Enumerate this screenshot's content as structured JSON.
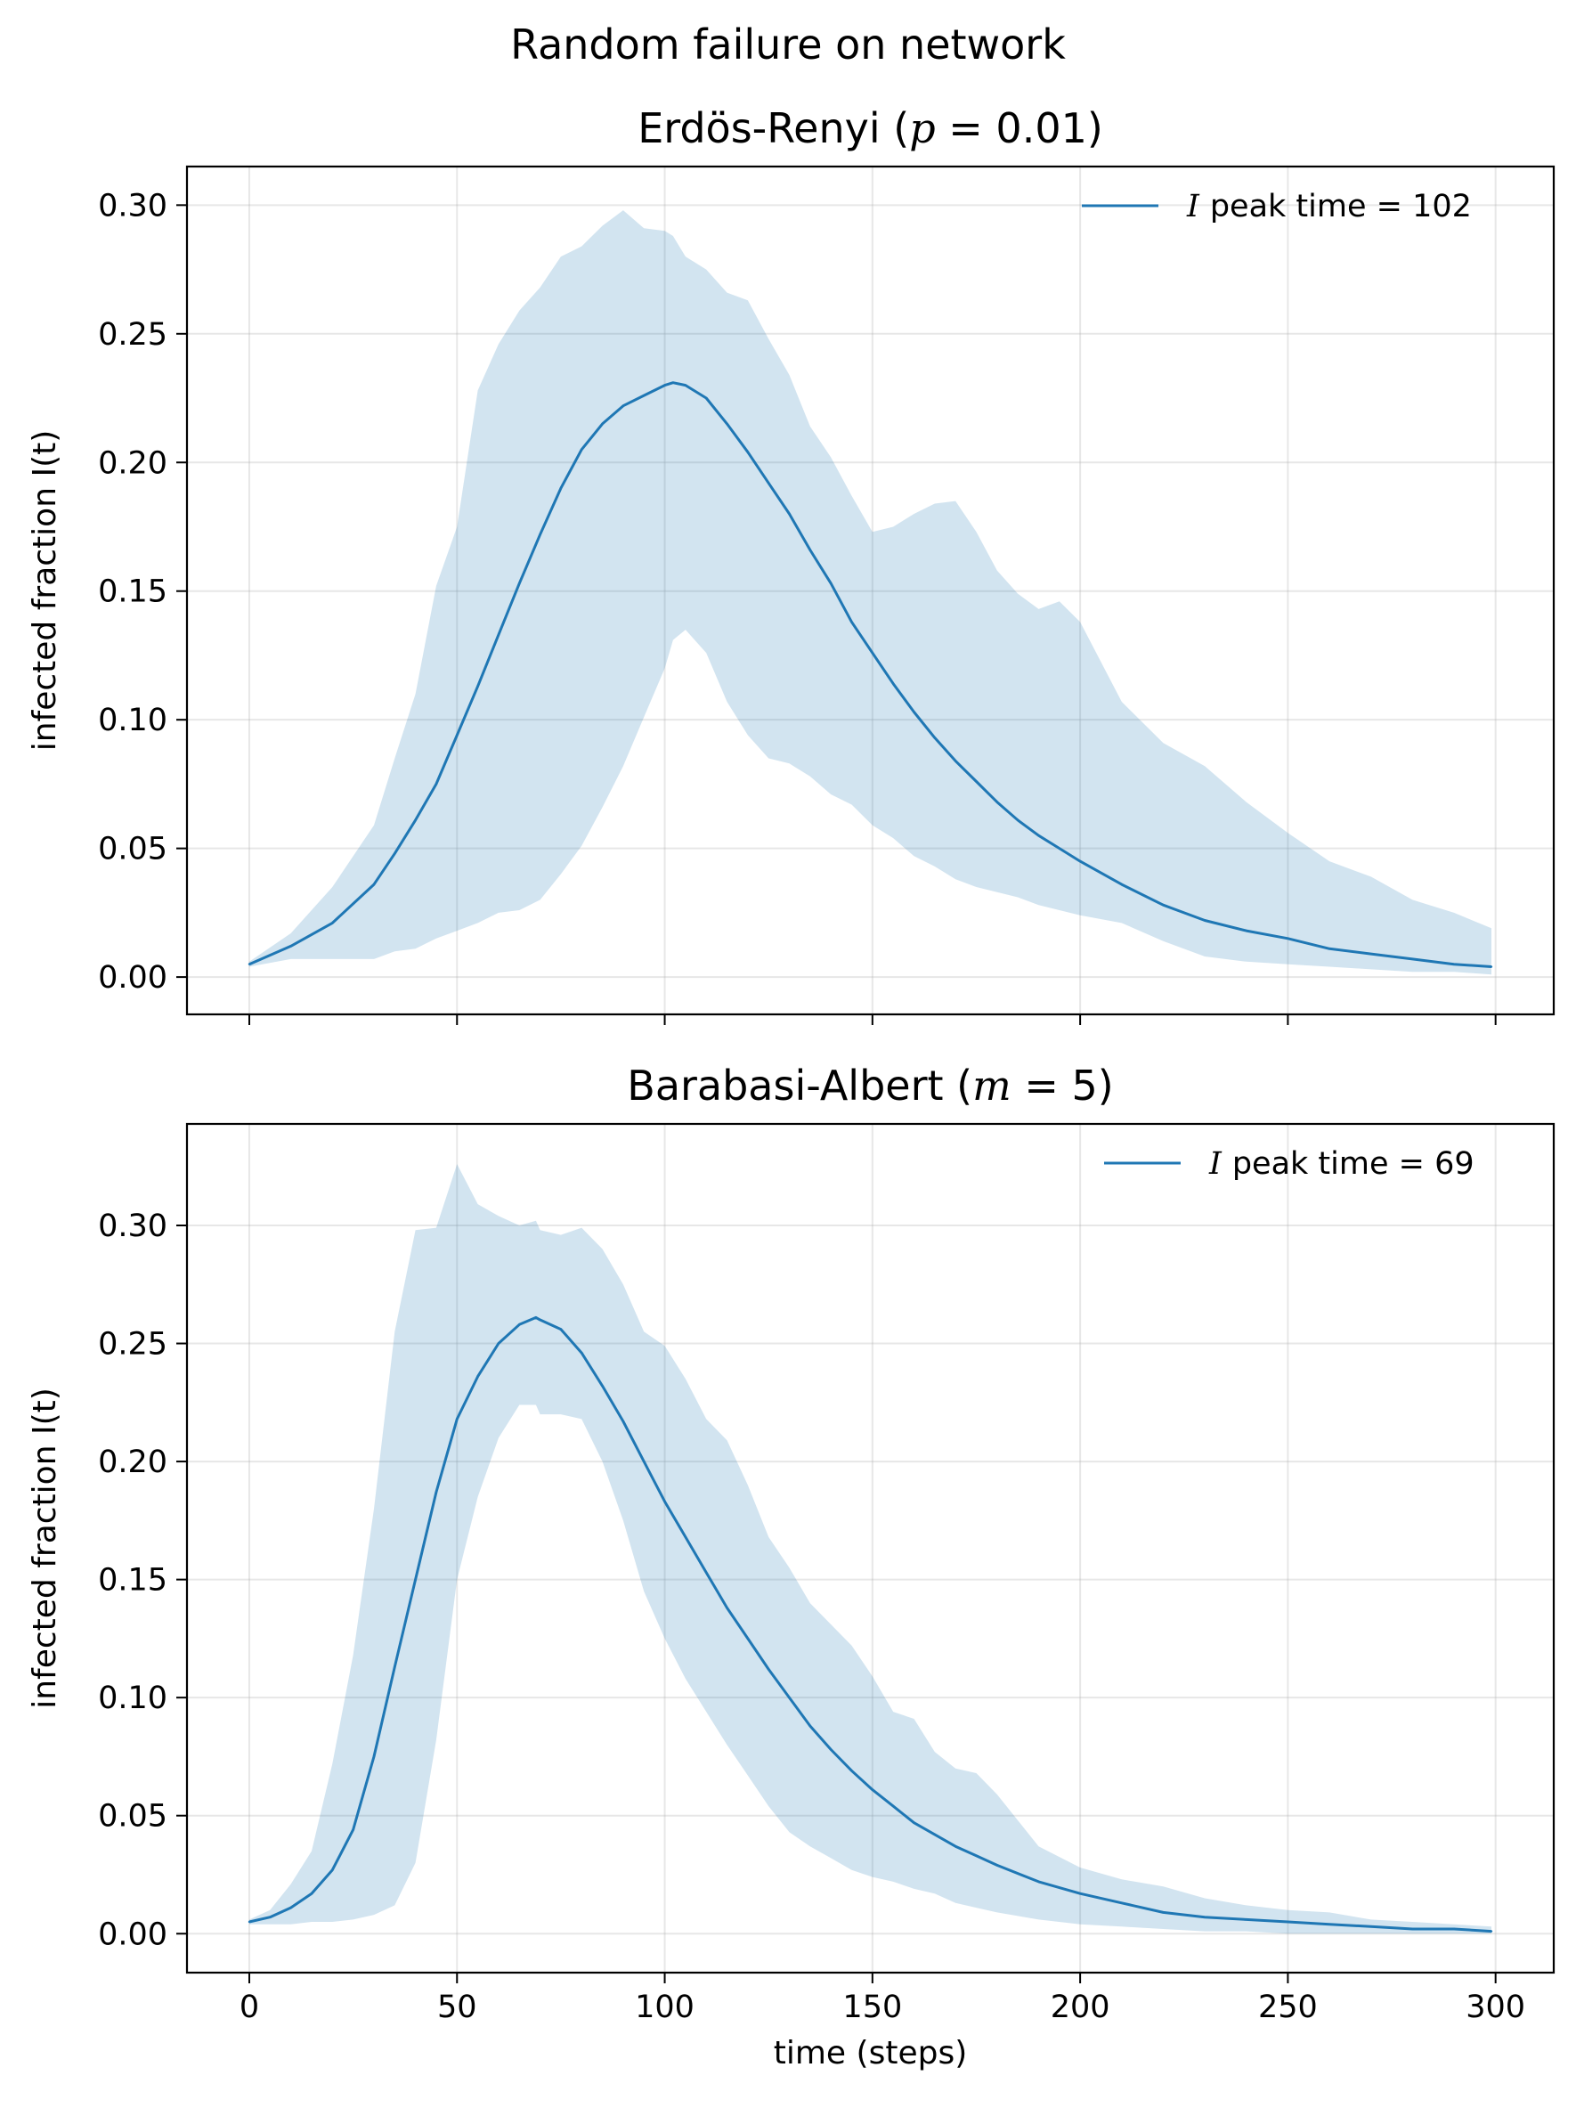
{
  "suptitle": "Random failure on network",
  "chart_data": [
    {
      "type": "line",
      "title_main": "Erdös-Renyi (",
      "title_var": "p",
      "title_eq": " = 0.01)",
      "xlabel": "",
      "ylabel": "infected fraction I(t)",
      "xlim": [
        -15,
        314
      ],
      "ylim": [
        -0.0145,
        0.315
      ],
      "xticks": [
        0,
        50,
        100,
        150,
        200,
        250,
        300
      ],
      "xtick_labels_visible": false,
      "yticks": [
        0.0,
        0.05,
        0.1,
        0.15,
        0.2,
        0.25,
        0.3
      ],
      "ytick_labels": [
        "0.00",
        "0.05",
        "0.10",
        "0.15",
        "0.20",
        "0.25",
        "0.30"
      ],
      "grid": true,
      "legend_position": "top-right",
      "series": [
        {
          "name": "I peak time = 102",
          "name_var": "I",
          "name_text": "peak time = 102",
          "color": "#1f77b4",
          "x": [
            0,
            10,
            20,
            30,
            35,
            40,
            45,
            50,
            55,
            60,
            65,
            70,
            75,
            80,
            85,
            90,
            95,
            100,
            102,
            105,
            110,
            115,
            120,
            125,
            130,
            135,
            140,
            145,
            150,
            155,
            160,
            165,
            170,
            175,
            180,
            185,
            190,
            195,
            200,
            210,
            220,
            230,
            240,
            250,
            260,
            270,
            280,
            290,
            299
          ],
          "mean": [
            0.005,
            0.012,
            0.021,
            0.036,
            0.048,
            0.061,
            0.075,
            0.094,
            0.113,
            0.133,
            0.153,
            0.172,
            0.19,
            0.205,
            0.215,
            0.222,
            0.226,
            0.23,
            0.231,
            0.23,
            0.225,
            0.215,
            0.204,
            0.192,
            0.18,
            0.166,
            0.153,
            0.138,
            0.126,
            0.114,
            0.103,
            0.093,
            0.084,
            0.076,
            0.068,
            0.061,
            0.055,
            0.05,
            0.045,
            0.036,
            0.028,
            0.022,
            0.018,
            0.015,
            0.011,
            0.009,
            0.007,
            0.005,
            0.004
          ],
          "upper": [
            0.006,
            0.017,
            0.035,
            0.059,
            0.085,
            0.11,
            0.152,
            0.175,
            0.228,
            0.246,
            0.259,
            0.268,
            0.28,
            0.284,
            0.292,
            0.298,
            0.291,
            0.29,
            0.288,
            0.28,
            0.275,
            0.266,
            0.263,
            0.248,
            0.234,
            0.214,
            0.202,
            0.187,
            0.173,
            0.175,
            0.18,
            0.184,
            0.185,
            0.173,
            0.158,
            0.149,
            0.143,
            0.146,
            0.138,
            0.107,
            0.091,
            0.082,
            0.068,
            0.056,
            0.045,
            0.039,
            0.03,
            0.025,
            0.019
          ],
          "lower": [
            0.004,
            0.007,
            0.007,
            0.007,
            0.01,
            0.011,
            0.015,
            0.018,
            0.021,
            0.025,
            0.026,
            0.03,
            0.04,
            0.051,
            0.066,
            0.082,
            0.101,
            0.12,
            0.131,
            0.135,
            0.126,
            0.107,
            0.094,
            0.085,
            0.083,
            0.078,
            0.071,
            0.067,
            0.059,
            0.054,
            0.047,
            0.043,
            0.038,
            0.035,
            0.033,
            0.031,
            0.028,
            0.026,
            0.024,
            0.021,
            0.014,
            0.008,
            0.006,
            0.005,
            0.004,
            0.003,
            0.002,
            0.002,
            0.001
          ]
        }
      ]
    },
    {
      "type": "line",
      "title_main": "Barabasi-Albert (",
      "title_var": "m",
      "title_eq": " = 5)",
      "xlabel": "time (steps)",
      "ylabel": "infected fraction I(t)",
      "xlim": [
        -15,
        314
      ],
      "ylim": [
        -0.0165,
        0.343
      ],
      "xticks": [
        0,
        50,
        100,
        150,
        200,
        250,
        300
      ],
      "xtick_labels": [
        "0",
        "50",
        "100",
        "150",
        "200",
        "250",
        "300"
      ],
      "yticks": [
        0.0,
        0.05,
        0.1,
        0.15,
        0.2,
        0.25,
        0.3
      ],
      "ytick_labels": [
        "0.00",
        "0.05",
        "0.10",
        "0.15",
        "0.20",
        "0.25",
        "0.30"
      ],
      "grid": true,
      "legend_position": "top-right",
      "series": [
        {
          "name": "I peak time = 69",
          "name_var": "I",
          "name_text": "peak time = 69",
          "color": "#1f77b4",
          "x": [
            0,
            5,
            10,
            15,
            20,
            25,
            30,
            35,
            40,
            45,
            50,
            55,
            60,
            65,
            69,
            70,
            75,
            80,
            85,
            90,
            95,
            100,
            105,
            110,
            115,
            120,
            125,
            130,
            135,
            140,
            145,
            150,
            155,
            160,
            165,
            170,
            175,
            180,
            190,
            200,
            210,
            220,
            230,
            240,
            250,
            260,
            270,
            280,
            290,
            299
          ],
          "mean": [
            0.005,
            0.007,
            0.011,
            0.017,
            0.027,
            0.044,
            0.075,
            0.113,
            0.15,
            0.187,
            0.218,
            0.236,
            0.25,
            0.258,
            0.261,
            0.26,
            0.256,
            0.246,
            0.232,
            0.217,
            0.2,
            0.183,
            0.168,
            0.153,
            0.138,
            0.125,
            0.112,
            0.1,
            0.088,
            0.078,
            0.069,
            0.061,
            0.054,
            0.047,
            0.042,
            0.037,
            0.033,
            0.029,
            0.022,
            0.017,
            0.013,
            0.009,
            0.007,
            0.006,
            0.005,
            0.004,
            0.003,
            0.002,
            0.002,
            0.001
          ],
          "upper": [
            0.006,
            0.01,
            0.021,
            0.035,
            0.072,
            0.118,
            0.18,
            0.255,
            0.298,
            0.299,
            0.326,
            0.309,
            0.304,
            0.3,
            0.302,
            0.298,
            0.296,
            0.299,
            0.29,
            0.275,
            0.255,
            0.249,
            0.235,
            0.218,
            0.209,
            0.19,
            0.168,
            0.155,
            0.14,
            0.131,
            0.122,
            0.109,
            0.094,
            0.091,
            0.077,
            0.07,
            0.068,
            0.059,
            0.037,
            0.028,
            0.023,
            0.02,
            0.015,
            0.012,
            0.01,
            0.009,
            0.006,
            0.005,
            0.004,
            0.003
          ],
          "lower": [
            0.004,
            0.004,
            0.004,
            0.005,
            0.005,
            0.006,
            0.008,
            0.012,
            0.03,
            0.082,
            0.15,
            0.185,
            0.21,
            0.224,
            0.224,
            0.22,
            0.22,
            0.218,
            0.2,
            0.175,
            0.145,
            0.125,
            0.108,
            0.094,
            0.08,
            0.067,
            0.054,
            0.043,
            0.037,
            0.032,
            0.027,
            0.024,
            0.022,
            0.019,
            0.017,
            0.013,
            0.011,
            0.009,
            0.006,
            0.004,
            0.003,
            0.002,
            0.001,
            0.001,
            0.0,
            0.0,
            0.0,
            0.0,
            0.0,
            0.0
          ]
        }
      ]
    }
  ]
}
